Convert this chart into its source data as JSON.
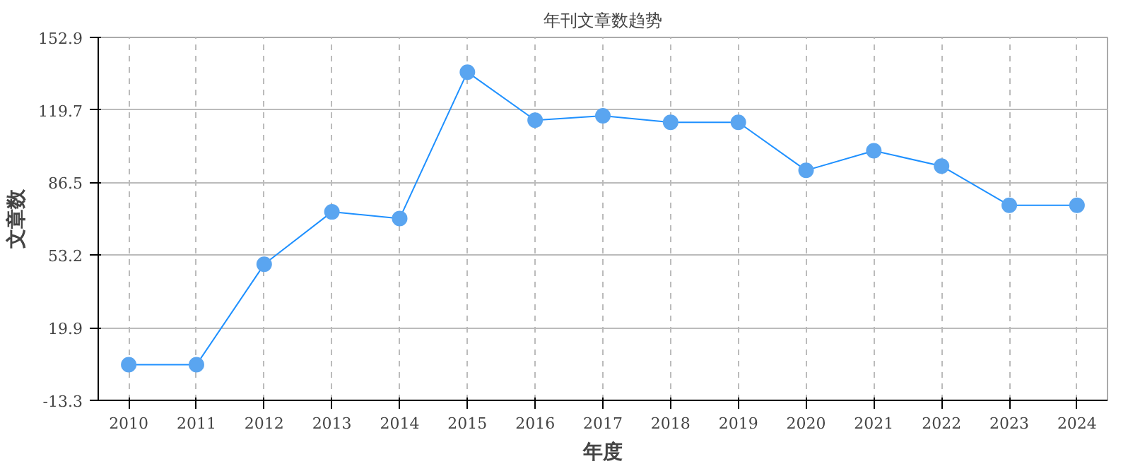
{
  "chart_data": {
    "type": "line",
    "title": "年刊文章数趋势",
    "xlabel": "年度",
    "ylabel": "文章数",
    "categories": [
      "2010",
      "2011",
      "2012",
      "2013",
      "2014",
      "2015",
      "2016",
      "2017",
      "2018",
      "2019",
      "2020",
      "2021",
      "2022",
      "2023",
      "2024"
    ],
    "series": [
      {
        "color": "#1e90ff",
        "values": [
          3,
          3,
          49,
          73,
          70,
          137,
          115,
          117,
          114,
          114,
          92,
          101,
          94,
          76,
          76
        ]
      }
    ],
    "ylim": [
      -13.3,
      152.9
    ],
    "yticks": [
      -13.3,
      19.9,
      53.2,
      86.5,
      119.7,
      152.9
    ],
    "grid": true,
    "marker": "circle",
    "line_style": "solid"
  }
}
